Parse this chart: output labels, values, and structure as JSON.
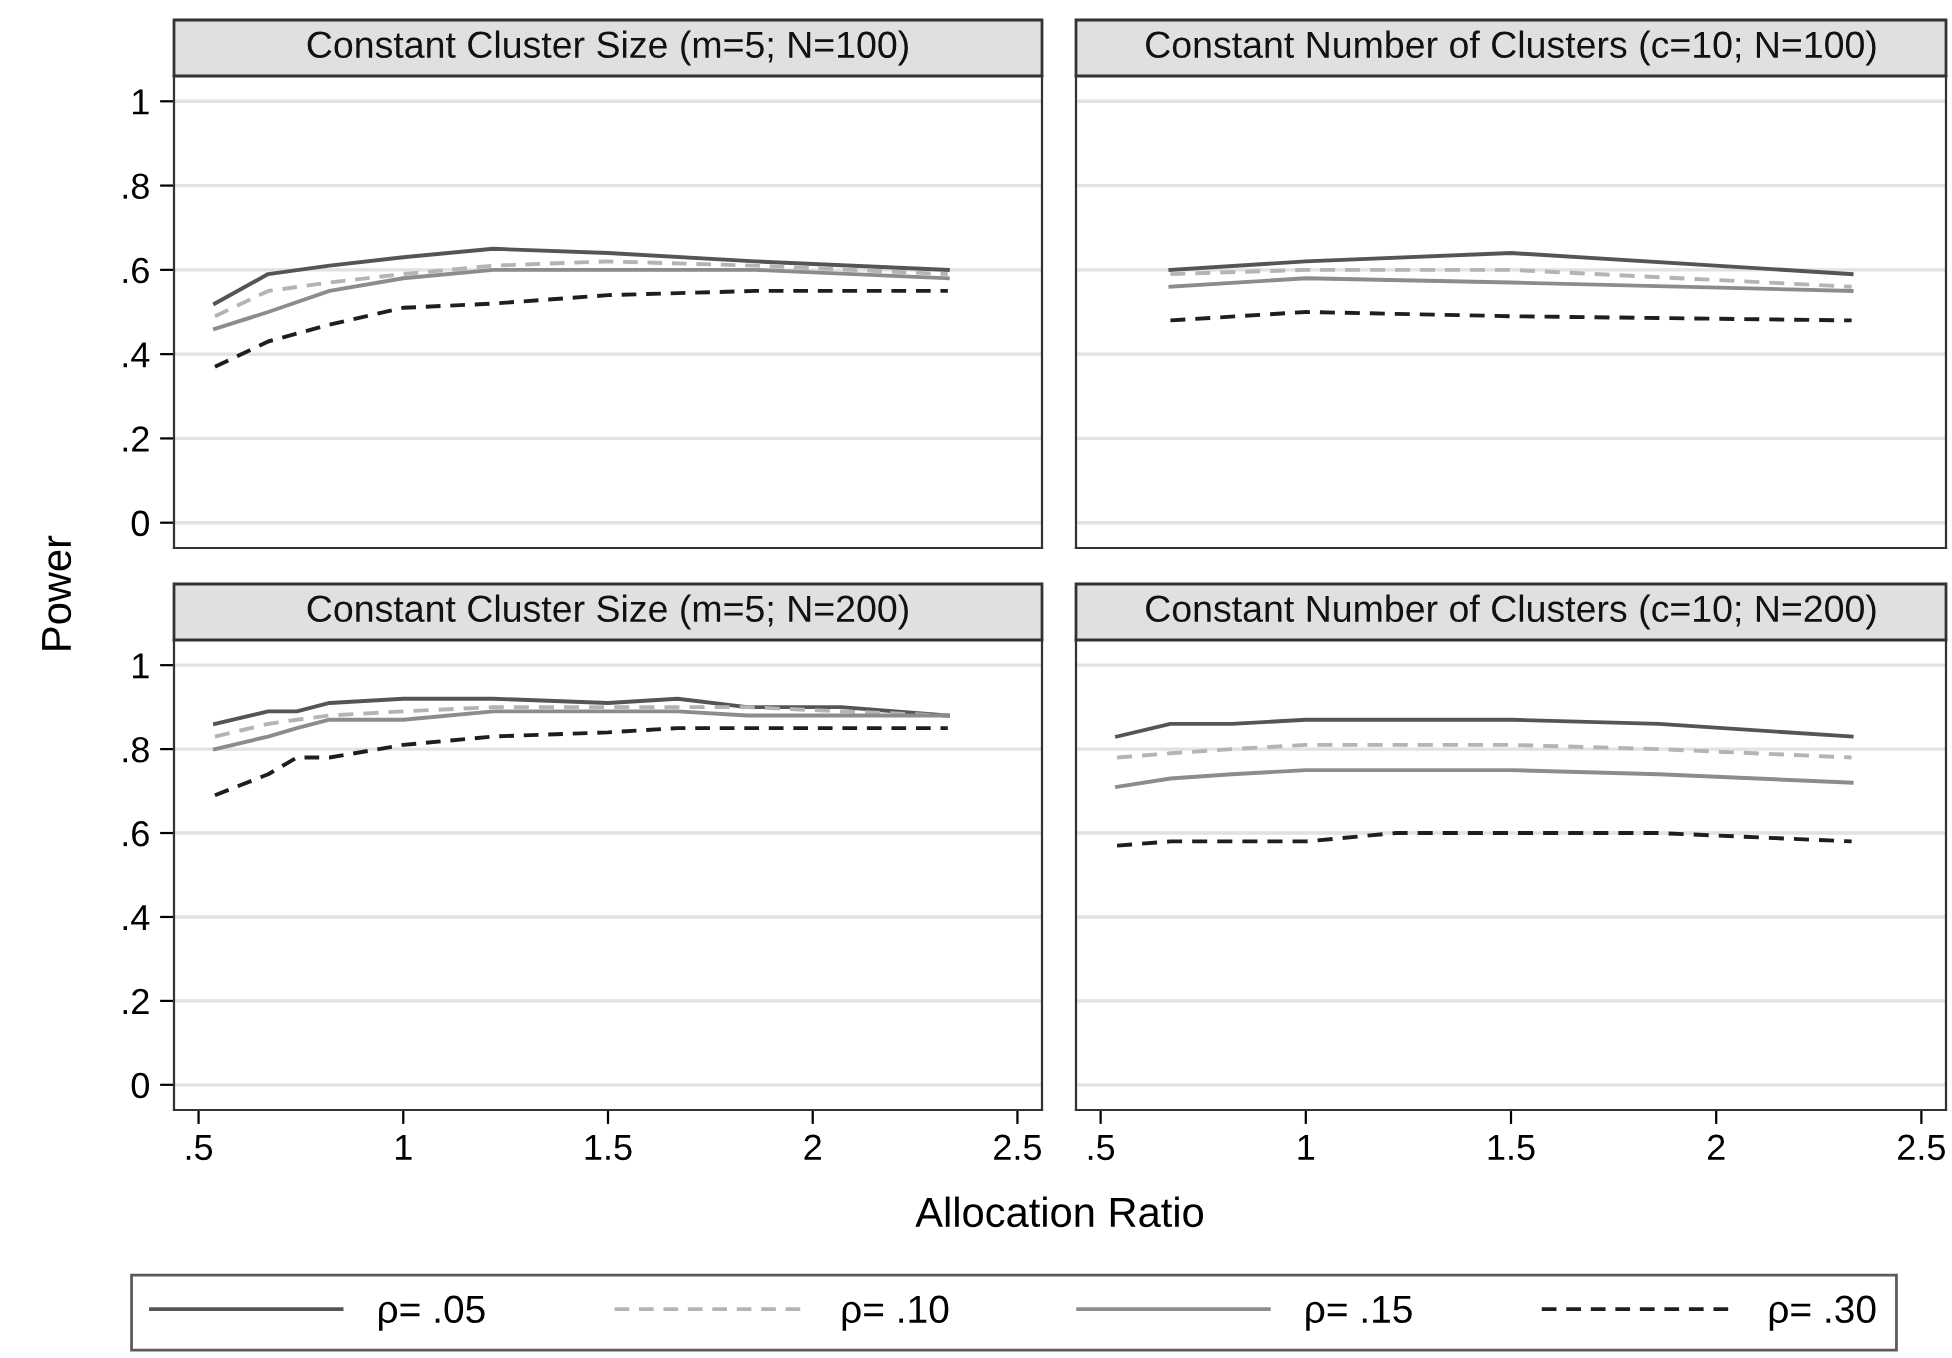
{
  "chart_data": [
    {
      "type": "line",
      "title": "Constant Cluster Size (m=5; N=100)",
      "ylabel": "Power",
      "xlim": [
        0.44,
        2.56
      ],
      "ylim": [
        -0.06,
        1.06
      ],
      "yticks": [
        {
          "value": 0,
          "label": "0"
        },
        {
          "value": 0.2,
          "label": ".2"
        },
        {
          "value": 0.4,
          "label": ".4"
        },
        {
          "value": 0.6,
          "label": ".6"
        },
        {
          "value": 0.8,
          "label": ".8"
        },
        {
          "value": 1,
          "label": "1"
        }
      ],
      "grid": "y",
      "tick_labels": "y",
      "legend": "bottom",
      "series": [
        {
          "name": "ρ= .05",
          "color": "#555555",
          "line_style": "solid",
          "x": [
            0.54,
            0.67,
            0.82,
            1.0,
            1.22,
            1.5,
            1.86,
            2.33
          ],
          "values": [
            0.52,
            0.59,
            0.61,
            0.63,
            0.65,
            0.64,
            0.62,
            0.6
          ]
        },
        {
          "name": "ρ= .10",
          "color": "#b4b4b4",
          "line_style": "dashed",
          "x": [
            0.54,
            0.67,
            0.82,
            1.0,
            1.22,
            1.5,
            1.86,
            2.33
          ],
          "values": [
            0.49,
            0.55,
            0.57,
            0.59,
            0.61,
            0.62,
            0.61,
            0.59
          ]
        },
        {
          "name": "ρ= .15",
          "color": "#8c8c8c",
          "line_style": "solid",
          "x": [
            0.54,
            0.67,
            0.82,
            1.0,
            1.22,
            1.5,
            1.86,
            2.33
          ],
          "values": [
            0.46,
            0.5,
            0.55,
            0.58,
            0.6,
            0.6,
            0.6,
            0.58
          ]
        },
        {
          "name": "ρ= .30",
          "color": "#1e1e1e",
          "line_style": "dashed",
          "x": [
            0.54,
            0.67,
            0.82,
            1.0,
            1.22,
            1.5,
            1.86,
            2.33
          ],
          "values": [
            0.37,
            0.43,
            0.47,
            0.51,
            0.52,
            0.54,
            0.55,
            0.55
          ]
        }
      ]
    },
    {
      "type": "line",
      "title": "Constant Number of Clusters (c=10; N=100)",
      "xlim": [
        0.44,
        2.56
      ],
      "ylim": [
        -0.06,
        1.06
      ],
      "yticks": [
        {
          "value": 0,
          "label": null
        },
        {
          "value": 0.2,
          "label": null
        },
        {
          "value": 0.4,
          "label": null
        },
        {
          "value": 0.6,
          "label": null
        },
        {
          "value": 0.8,
          "label": null
        },
        {
          "value": 1,
          "label": null
        }
      ],
      "grid": "y",
      "tick_labels": false,
      "series": [
        {
          "color": "#555555",
          "line_style": "solid",
          "x": [
            0.67,
            1.0,
            1.5,
            2.33
          ],
          "values": [
            0.6,
            0.62,
            0.64,
            0.59
          ]
        },
        {
          "color": "#b4b4b4",
          "line_style": "dashed",
          "x": [
            0.67,
            1.0,
            1.5,
            2.33
          ],
          "values": [
            0.59,
            0.6,
            0.6,
            0.56
          ]
        },
        {
          "color": "#8c8c8c",
          "line_style": "solid",
          "x": [
            0.67,
            1.0,
            1.5,
            2.33
          ],
          "values": [
            0.56,
            0.58,
            0.57,
            0.55
          ]
        },
        {
          "color": "#1e1e1e",
          "line_style": "dashed",
          "x": [
            0.67,
            1.0,
            1.5,
            2.33
          ],
          "values": [
            0.48,
            0.5,
            0.49,
            0.48
          ]
        }
      ]
    },
    {
      "type": "line",
      "title": "Constant Cluster Size (m=5; N=200)",
      "xlabel": "Allocation Ratio",
      "xlim": [
        0.44,
        2.56
      ],
      "ylim": [
        -0.06,
        1.06
      ],
      "xticks": [
        {
          "value": 0.5,
          "label": ".5"
        },
        1,
        1.5,
        2,
        2.5
      ],
      "yticks": [
        {
          "value": 0,
          "label": "0"
        },
        {
          "value": 0.2,
          "label": ".2"
        },
        {
          "value": 0.4,
          "label": ".4"
        },
        {
          "value": 0.6,
          "label": ".6"
        },
        {
          "value": 0.8,
          "label": ".8"
        },
        {
          "value": 1,
          "label": "1"
        }
      ],
      "grid": "y",
      "series": [
        {
          "color": "#555555",
          "line_style": "solid",
          "x": [
            0.54,
            0.67,
            0.74,
            0.82,
            1.0,
            1.22,
            1.5,
            1.67,
            1.84,
            2.07,
            2.33
          ],
          "values": [
            0.86,
            0.89,
            0.89,
            0.91,
            0.92,
            0.92,
            0.91,
            0.92,
            0.9,
            0.9,
            0.88
          ]
        },
        {
          "color": "#b4b4b4",
          "line_style": "dashed",
          "x": [
            0.54,
            0.67,
            0.74,
            0.82,
            1.0,
            1.22,
            1.5,
            1.67,
            1.84,
            2.07,
            2.33
          ],
          "values": [
            0.83,
            0.86,
            0.87,
            0.88,
            0.89,
            0.9,
            0.9,
            0.9,
            0.9,
            0.89,
            0.88
          ]
        },
        {
          "color": "#8c8c8c",
          "line_style": "solid",
          "x": [
            0.54,
            0.67,
            0.74,
            0.82,
            1.0,
            1.22,
            1.5,
            1.67,
            1.84,
            2.07,
            2.33
          ],
          "values": [
            0.8,
            0.83,
            0.85,
            0.87,
            0.87,
            0.89,
            0.89,
            0.89,
            0.88,
            0.88,
            0.88
          ]
        },
        {
          "color": "#1e1e1e",
          "line_style": "dashed",
          "x": [
            0.54,
            0.67,
            0.74,
            0.82,
            1.0,
            1.22,
            1.5,
            1.67,
            1.84,
            2.07,
            2.33
          ],
          "values": [
            0.69,
            0.74,
            0.78,
            0.78,
            0.81,
            0.83,
            0.84,
            0.85,
            0.85,
            0.85,
            0.85
          ]
        }
      ]
    },
    {
      "type": "line",
      "title": "Constant Number of Clusters (c=10; N=200)",
      "xlim": [
        0.44,
        2.56
      ],
      "ylim": [
        -0.06,
        1.06
      ],
      "xticks": [
        {
          "value": 0.5,
          "label": ".5"
        },
        1,
        1.5,
        2,
        2.5
      ],
      "yticks": [
        {
          "value": 0,
          "label": null
        },
        {
          "value": 0.2,
          "label": null
        },
        {
          "value": 0.4,
          "label": null
        },
        {
          "value": 0.6,
          "label": null
        },
        {
          "value": 0.8,
          "label": null
        },
        {
          "value": 1,
          "label": null
        }
      ],
      "grid": "y",
      "tick_labels": "x",
      "series": [
        {
          "color": "#555555",
          "line_style": "solid",
          "x": [
            0.54,
            0.67,
            0.82,
            1.0,
            1.22,
            1.5,
            1.86,
            2.33
          ],
          "values": [
            0.83,
            0.86,
            0.86,
            0.87,
            0.87,
            0.87,
            0.86,
            0.83
          ]
        },
        {
          "color": "#b4b4b4",
          "line_style": "dashed",
          "x": [
            0.54,
            0.67,
            0.82,
            1.0,
            1.22,
            1.5,
            1.86,
            2.33
          ],
          "values": [
            0.78,
            0.79,
            0.8,
            0.81,
            0.81,
            0.81,
            0.8,
            0.78
          ]
        },
        {
          "color": "#8c8c8c",
          "line_style": "solid",
          "x": [
            0.54,
            0.67,
            0.82,
            1.0,
            1.22,
            1.5,
            1.86,
            2.33
          ],
          "values": [
            0.71,
            0.73,
            0.74,
            0.75,
            0.75,
            0.75,
            0.74,
            0.72
          ]
        },
        {
          "color": "#1e1e1e",
          "line_style": "dashed",
          "x": [
            0.54,
            0.67,
            0.82,
            1.0,
            1.22,
            1.5,
            1.86,
            2.33
          ],
          "values": [
            0.57,
            0.58,
            0.58,
            0.58,
            0.6,
            0.6,
            0.6,
            0.58
          ]
        }
      ]
    }
  ]
}
